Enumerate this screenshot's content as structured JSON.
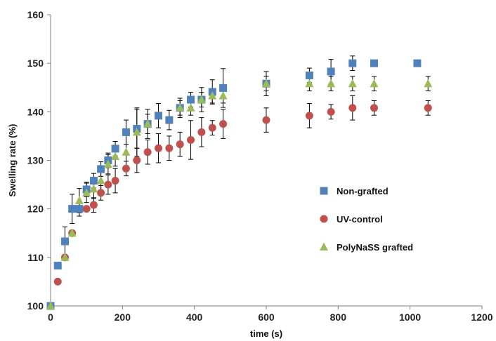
{
  "chart_data": {
    "type": "scatter",
    "title": "",
    "xlabel": "time (s)",
    "ylabel": "Swelling rate (%)",
    "xlim": [
      0,
      1200
    ],
    "ylim": [
      100,
      160
    ],
    "xticks": [
      0,
      200,
      400,
      600,
      800,
      1000,
      1200
    ],
    "yticks": [
      100,
      110,
      120,
      130,
      140,
      150,
      160
    ],
    "xtick_labels": [
      "0",
      "200",
      "400",
      "600",
      "800",
      "1000",
      "1200"
    ],
    "ytick_labels": [
      "100",
      "110",
      "120",
      "130",
      "140",
      "150",
      "160"
    ],
    "grid": false,
    "legend_position": "center-right",
    "series": [
      {
        "name": "Non-grafted",
        "marker": "square",
        "color": "#4F81BD",
        "x": [
          0,
          20,
          40,
          60,
          80,
          100,
          120,
          140,
          160,
          180,
          210,
          240,
          270,
          300,
          330,
          360,
          390,
          420,
          450,
          480,
          600,
          720,
          780,
          840,
          900,
          1020
        ],
        "y": [
          100,
          108.3,
          113.3,
          120,
          120,
          124,
          125.8,
          128.2,
          130,
          132.4,
          135.8,
          136.5,
          137.5,
          139.2,
          138.3,
          140.8,
          142.5,
          142.5,
          144.1,
          144.9,
          145.8,
          147.5,
          148.3,
          150,
          150,
          150
        ],
        "err": [
          0,
          0,
          3,
          3,
          1.5,
          1.5,
          1.5,
          1.5,
          1.5,
          1.5,
          2.5,
          4,
          3,
          2.5,
          2,
          2,
          1.5,
          2.5,
          2.5,
          4,
          2.5,
          1.5,
          2.5,
          1.5,
          0,
          0
        ]
      },
      {
        "name": "UV-control",
        "marker": "circle",
        "color": "#C0504D",
        "x": [
          0,
          20,
          40,
          60,
          80,
          100,
          120,
          140,
          160,
          180,
          210,
          240,
          270,
          300,
          330,
          360,
          390,
          420,
          450,
          480,
          600,
          720,
          780,
          840,
          900,
          1050
        ],
        "y": [
          100,
          105,
          110,
          115,
          120,
          120,
          120.8,
          123.3,
          125,
          125.8,
          128.3,
          130,
          131.7,
          132.5,
          132.5,
          133.3,
          134.2,
          135.8,
          136.7,
          137.5,
          138.3,
          139.2,
          140,
          140.8,
          140.8,
          140.8
        ],
        "err": [
          0,
          0,
          0,
          0,
          0,
          0,
          1.5,
          1.5,
          2,
          2.5,
          1.5,
          2.5,
          2.5,
          3,
          2.5,
          2.5,
          4,
          3,
          1.5,
          3,
          2.5,
          2.5,
          1.5,
          2.5,
          1.5,
          1.5
        ]
      },
      {
        "name": "PolyNaSS grafted",
        "marker": "triangle",
        "color": "#9BBB59",
        "x": [
          0,
          40,
          60,
          80,
          100,
          120,
          140,
          160,
          180,
          210,
          240,
          270,
          360,
          390,
          420,
          450,
          480,
          600,
          720,
          780,
          840,
          900,
          1050
        ],
        "y": [
          100,
          110,
          115,
          121.7,
          123.3,
          124.1,
          125.8,
          129.2,
          130.8,
          131.7,
          135.8,
          137.5,
          140.8,
          140.8,
          142.5,
          143.3,
          143.3,
          145.8,
          145.8,
          145.8,
          145.8,
          145.8,
          145.8
        ],
        "err": [
          0,
          0,
          0,
          2.5,
          2,
          2,
          2,
          2,
          2,
          3.5,
          5,
          2,
          1.5,
          1.5,
          1.5,
          1.5,
          1.5,
          1.5,
          1.5,
          1.5,
          1.5,
          1.5,
          1.5
        ]
      }
    ]
  }
}
